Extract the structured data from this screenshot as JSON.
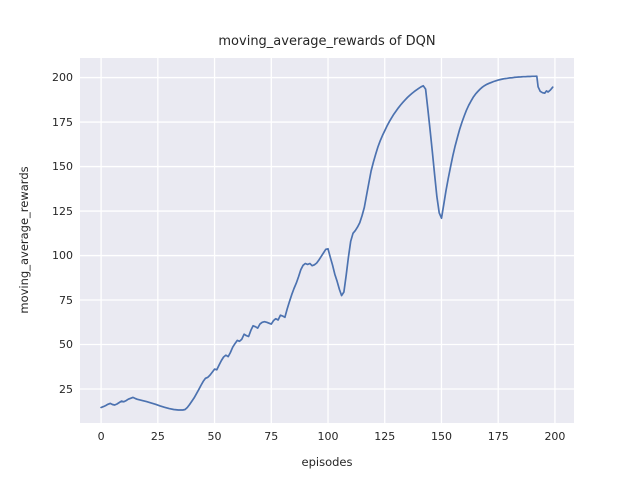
{
  "figure": {
    "background": "#ffffff",
    "axes_background": "#eaeaf2",
    "grid_color": "#ffffff",
    "text_color": "#262626",
    "line_color": "#4c72b0"
  },
  "chart_data": {
    "type": "line",
    "title": "moving_average_rewards of DQN",
    "xlabel": "episodes",
    "ylabel": "moving_average_rewards",
    "x_ticks": [
      0,
      25,
      50,
      75,
      100,
      125,
      150,
      175,
      200
    ],
    "y_ticks": [
      25,
      50,
      75,
      100,
      125,
      150,
      175,
      200
    ],
    "xlim": [
      -9.3,
      208.4
    ],
    "ylim": [
      5.9,
      211
    ],
    "grid": true,
    "legend": false,
    "series": [
      {
        "name": "moving_average_rewards",
        "color": "#4c72b0",
        "points": [
          [
            0,
            14.6
          ],
          [
            1,
            15.1
          ],
          [
            2,
            15.7
          ],
          [
            3,
            16.4
          ],
          [
            4,
            16.9
          ],
          [
            5,
            16.3
          ],
          [
            6,
            16.0
          ],
          [
            7,
            16.6
          ],
          [
            8,
            17.4
          ],
          [
            9,
            18.2
          ],
          [
            10,
            17.8
          ],
          [
            11,
            18.5
          ],
          [
            12,
            19.3
          ],
          [
            13,
            19.8
          ],
          [
            14,
            20.3
          ],
          [
            15,
            19.7
          ],
          [
            16,
            19.2
          ],
          [
            18,
            18.6
          ],
          [
            20,
            17.9
          ],
          [
            22,
            17.2
          ],
          [
            24,
            16.4
          ],
          [
            26,
            15.5
          ],
          [
            28,
            14.7
          ],
          [
            30,
            14.0
          ],
          [
            32,
            13.5
          ],
          [
            34,
            13.2
          ],
          [
            36,
            13.2
          ],
          [
            37,
            13.5
          ],
          [
            38,
            14.6
          ],
          [
            39,
            16.3
          ],
          [
            40,
            18.2
          ],
          [
            41,
            20.0
          ],
          [
            42,
            22.3
          ],
          [
            43,
            24.6
          ],
          [
            44,
            27.0
          ],
          [
            45,
            29.3
          ],
          [
            46,
            31.0
          ],
          [
            47,
            31.6
          ],
          [
            48,
            32.8
          ],
          [
            49,
            34.5
          ],
          [
            50,
            36.2
          ],
          [
            51,
            35.8
          ],
          [
            52,
            38.5
          ],
          [
            53,
            41.0
          ],
          [
            54,
            43.0
          ],
          [
            55,
            44.0
          ],
          [
            56,
            43.2
          ],
          [
            57,
            45.5
          ],
          [
            58,
            48.5
          ],
          [
            59,
            50.5
          ],
          [
            60,
            52.3
          ],
          [
            61,
            51.8
          ],
          [
            62,
            53.0
          ],
          [
            63,
            55.8
          ],
          [
            64,
            55.0
          ],
          [
            65,
            54.5
          ],
          [
            66,
            58.0
          ],
          [
            67,
            60.5
          ],
          [
            68,
            60.0
          ],
          [
            69,
            59.2
          ],
          [
            70,
            61.5
          ],
          [
            71,
            62.5
          ],
          [
            72,
            62.8
          ],
          [
            73,
            62.5
          ],
          [
            74,
            62.0
          ],
          [
            75,
            61.5
          ],
          [
            76,
            63.5
          ],
          [
            77,
            64.5
          ],
          [
            78,
            63.8
          ],
          [
            79,
            66.5
          ],
          [
            80,
            66.0
          ],
          [
            81,
            65.3
          ],
          [
            82,
            70.0
          ],
          [
            83,
            74.0
          ],
          [
            84,
            78.0
          ],
          [
            85,
            81.5
          ],
          [
            86,
            84.5
          ],
          [
            87,
            88.0
          ],
          [
            88,
            92.0
          ],
          [
            89,
            94.5
          ],
          [
            90,
            95.5
          ],
          [
            91,
            95.0
          ],
          [
            92,
            95.5
          ],
          [
            93,
            94.3
          ],
          [
            94,
            94.8
          ],
          [
            95,
            95.8
          ],
          [
            96,
            97.5
          ],
          [
            97,
            99.5
          ],
          [
            98,
            101.5
          ],
          [
            99,
            103.5
          ],
          [
            100,
            103.8
          ],
          [
            101,
            99.0
          ],
          [
            102,
            94.5
          ],
          [
            103,
            89.5
          ],
          [
            104,
            85.5
          ],
          [
            105,
            81.0
          ],
          [
            106,
            77.5
          ],
          [
            107,
            79.5
          ],
          [
            108,
            89.0
          ],
          [
            109,
            99.0
          ],
          [
            110,
            108.0
          ],
          [
            111,
            112.5
          ],
          [
            112,
            114.0
          ],
          [
            113,
            116.0
          ],
          [
            114,
            118.5
          ],
          [
            115,
            122.5
          ],
          [
            116,
            127.0
          ],
          [
            117,
            134.0
          ],
          [
            118,
            141.0
          ],
          [
            119,
            147.5
          ],
          [
            120,
            152.5
          ],
          [
            121,
            157.0
          ],
          [
            122,
            161.0
          ],
          [
            123,
            164.5
          ],
          [
            124,
            167.5
          ],
          [
            125,
            170.2
          ],
          [
            126,
            172.8
          ],
          [
            127,
            175.2
          ],
          [
            128,
            177.4
          ],
          [
            129,
            179.4
          ],
          [
            130,
            181.2
          ],
          [
            131,
            183.0
          ],
          [
            132,
            184.6
          ],
          [
            133,
            186.1
          ],
          [
            134,
            187.5
          ],
          [
            135,
            188.8
          ],
          [
            136,
            190.0
          ],
          [
            137,
            191.1
          ],
          [
            138,
            192.1
          ],
          [
            139,
            193.1
          ],
          [
            140,
            194.0
          ],
          [
            141,
            194.8
          ],
          [
            142,
            195.4
          ],
          [
            143,
            193.5
          ],
          [
            144,
            182.0
          ],
          [
            145,
            170.5
          ],
          [
            146,
            158.0
          ],
          [
            147,
            145.0
          ],
          [
            148,
            133.0
          ],
          [
            149,
            124.0
          ],
          [
            150,
            121.0
          ],
          [
            151,
            128.5
          ],
          [
            152,
            136.5
          ],
          [
            153,
            143.5
          ],
          [
            154,
            150.0
          ],
          [
            155,
            156.0
          ],
          [
            156,
            161.5
          ],
          [
            157,
            166.3
          ],
          [
            158,
            170.8
          ],
          [
            159,
            174.8
          ],
          [
            160,
            178.4
          ],
          [
            161,
            181.6
          ],
          [
            162,
            184.4
          ],
          [
            163,
            186.8
          ],
          [
            164,
            188.9
          ],
          [
            165,
            190.7
          ],
          [
            166,
            192.2
          ],
          [
            167,
            193.5
          ],
          [
            168,
            194.6
          ],
          [
            169,
            195.5
          ],
          [
            170,
            196.2
          ],
          [
            171,
            196.8
          ],
          [
            172,
            197.3
          ],
          [
            173,
            197.8
          ],
          [
            174,
            198.2
          ],
          [
            175,
            198.6
          ],
          [
            176,
            198.9
          ],
          [
            177,
            199.2
          ],
          [
            178,
            199.4
          ],
          [
            179,
            199.6
          ],
          [
            180,
            199.8
          ],
          [
            181,
            199.9
          ],
          [
            182,
            200.1
          ],
          [
            183,
            200.2
          ],
          [
            184,
            200.3
          ],
          [
            185,
            200.4
          ],
          [
            186,
            200.5
          ],
          [
            187,
            200.5
          ],
          [
            188,
            200.6
          ],
          [
            189,
            200.6
          ],
          [
            190,
            200.7
          ],
          [
            191,
            200.7
          ],
          [
            192,
            200.8
          ],
          [
            192.6,
            194.8
          ],
          [
            193.5,
            192.3
          ],
          [
            194.5,
            191.5
          ],
          [
            195.5,
            191.2
          ],
          [
            196.3,
            192.5
          ],
          [
            197,
            191.9
          ],
          [
            198,
            193.0
          ],
          [
            199,
            194.6
          ]
        ]
      }
    ]
  }
}
